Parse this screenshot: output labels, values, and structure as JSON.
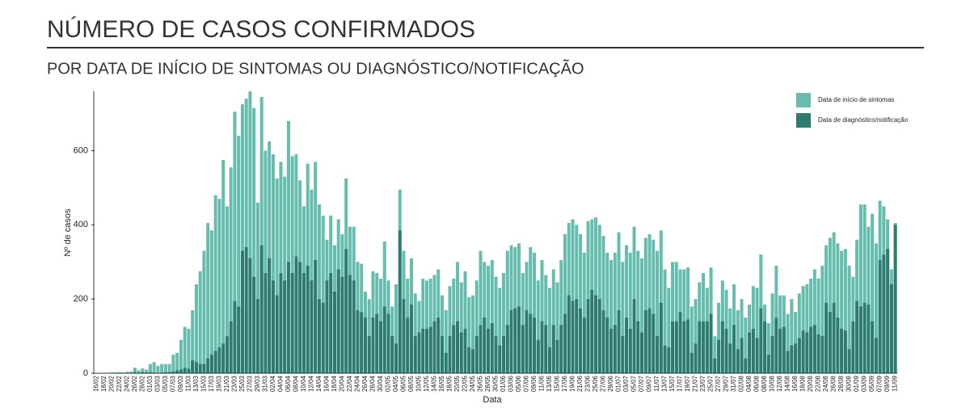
{
  "chart_data": {
    "type": "bar",
    "title": "NÚMERO DE CASOS CONFIRMADOS",
    "subtitle": "POR DATA DE INÍCIO DE SINTOMAS OU DIAGNÓSTICO/NOTIFICAÇÃO",
    "x_label": "Data",
    "y_label": "Nº de casos",
    "categories": [
      "16/02",
      null,
      "18/02",
      null,
      "20/02",
      null,
      "22/02",
      null,
      "24/02",
      null,
      "26/02",
      null,
      "28/02",
      null,
      "01/03",
      null,
      "03/03",
      null,
      "05/03",
      null,
      "07/03",
      null,
      "09/03",
      null,
      "11/03",
      null,
      "13/03",
      null,
      "15/03",
      null,
      "17/03",
      null,
      "19/03",
      null,
      "21/03",
      null,
      "23/03",
      null,
      "25/03",
      null,
      "27/03",
      null,
      "29/03",
      null,
      "31/03",
      null,
      "02/04",
      null,
      "04/04",
      null,
      "06/04",
      null,
      "08/04",
      null,
      "10/04",
      null,
      "12/04",
      null,
      "14/04",
      null,
      "16/04",
      null,
      "18/04",
      null,
      "20/04",
      null,
      "22/04",
      null,
      "24/04",
      null,
      "26/04",
      null,
      "28/04",
      null,
      "30/04",
      null,
      "02/05",
      null,
      "04/05",
      null,
      "06/05",
      null,
      "08/05",
      null,
      "10/05",
      null,
      "12/05",
      null,
      "14/05",
      null,
      "16/05",
      null,
      "18/05",
      null,
      "20/05",
      null,
      "22/05",
      null,
      "24/05",
      null,
      "26/05",
      null,
      "28/05",
      null,
      "30/05",
      null,
      "01/06",
      null,
      "03/06",
      null,
      "05/06",
      null,
      "07/06",
      null,
      "09/06",
      null,
      "11/06",
      null,
      "13/06",
      null,
      "15/06",
      null,
      "17/06",
      null,
      "19/06",
      null,
      "21/06",
      null,
      "23/06",
      null,
      "25/06",
      null,
      "27/06",
      null,
      "29/06",
      null,
      "01/07",
      null,
      "03/07",
      null,
      "05/07",
      null,
      "07/07",
      null,
      "09/07",
      null,
      "11/07",
      null,
      "13/07",
      null,
      "15/07",
      null,
      "17/07",
      null,
      "19/07",
      null,
      "21/07",
      null,
      "23/07",
      null,
      "25/07",
      null,
      "27/07",
      null,
      "29/07",
      null,
      "31/07",
      null,
      "02/08",
      null,
      "04/08",
      null,
      "06/08",
      null,
      "08/08",
      null,
      "10/08",
      null,
      "12/08",
      null,
      "14/08",
      null,
      "16/08",
      null,
      "18/08",
      null,
      "20/08",
      null,
      "22/08",
      null,
      "24/08",
      null,
      "26/08",
      null,
      "28/08",
      null,
      "30/08",
      null,
      "01/09",
      null,
      "03/09",
      null,
      "05/09",
      null,
      "07/09",
      null,
      "09/09",
      null,
      "11/09"
    ],
    "series": [
      {
        "name": "Data de início de sintomas",
        "color": "#66bdae",
        "values": [
          1,
          0,
          1,
          1,
          2,
          2,
          3,
          2,
          4,
          5,
          15,
          8,
          13,
          10,
          25,
          30,
          20,
          25,
          25,
          25,
          50,
          55,
          90,
          125,
          120,
          170,
          240,
          275,
          330,
          405,
          385,
          480,
          470,
          575,
          450,
          555,
          705,
          640,
          725,
          740,
          760,
          715,
          460,
          745,
          600,
          625,
          590,
          525,
          570,
          530,
          680,
          585,
          590,
          520,
          450,
          565,
          495,
          570,
          455,
          425,
          360,
          425,
          345,
          415,
          375,
          525,
          395,
          395,
          300,
          295,
          220,
          200,
          275,
          270,
          255,
          355,
          250,
          180,
          240,
          495,
          330,
          255,
          310,
          215,
          195,
          255,
          250,
          255,
          265,
          280,
          210,
          170,
          235,
          255,
          300,
          245,
          275,
          205,
          210,
          250,
          330,
          300,
          290,
          305,
          260,
          230,
          270,
          330,
          345,
          340,
          350,
          270,
          300,
          340,
          325,
          250,
          305,
          265,
          230,
          280,
          245,
          305,
          375,
          405,
          415,
          400,
          375,
          325,
          410,
          415,
          420,
          400,
          370,
          325,
          305,
          325,
          380,
          300,
          345,
          325,
          395,
          330,
          310,
          365,
          375,
          360,
          330,
          385,
          280,
          230,
          300,
          300,
          280,
          280,
          285,
          180,
          200,
          245,
          270,
          230,
          285,
          100,
          190,
          250,
          225,
          175,
          240,
          170,
          200,
          150,
          185,
          235,
          230,
          320,
          185,
          135,
          215,
          290,
          210,
          210,
          160,
          200,
          165,
          215,
          235,
          240,
          255,
          280,
          255,
          290,
          345,
          365,
          380,
          350,
          330,
          335,
          290,
          260,
          360,
          455,
          455,
          395,
          430,
          350,
          465,
          450,
          415,
          280,
          405
        ]
      },
      {
        "name": "Data de diagnóstico/notificação",
        "color": "#2e7b72",
        "values": [
          0,
          0,
          0,
          0,
          1,
          0,
          1,
          0,
          1,
          1,
          3,
          2,
          3,
          2,
          3,
          2,
          1,
          2,
          3,
          3,
          5,
          8,
          10,
          15,
          12,
          35,
          30,
          25,
          25,
          40,
          50,
          60,
          70,
          80,
          100,
          140,
          195,
          180,
          330,
          340,
          310,
          260,
          200,
          345,
          270,
          310,
          250,
          210,
          270,
          250,
          300,
          270,
          315,
          300,
          270,
          290,
          250,
          305,
          200,
          190,
          250,
          270,
          220,
          280,
          260,
          335,
          265,
          250,
          170,
          165,
          150,
          100,
          150,
          160,
          140,
          180,
          160,
          100,
          80,
          385,
          200,
          150,
          185,
          100,
          110,
          120,
          120,
          125,
          140,
          150,
          100,
          55,
          100,
          130,
          140,
          110,
          120,
          70,
          65,
          100,
          130,
          150,
          120,
          135,
          100,
          75,
          100,
          130,
          170,
          175,
          180,
          130,
          170,
          160,
          150,
          90,
          140,
          130,
          70,
          130,
          90,
          130,
          160,
          210,
          195,
          200,
          175,
          150,
          200,
          225,
          210,
          200,
          170,
          150,
          120,
          130,
          170,
          100,
          150,
          120,
          200,
          140,
          110,
          170,
          175,
          160,
          100,
          190,
          75,
          70,
          140,
          140,
          165,
          140,
          145,
          55,
          80,
          140,
          140,
          140,
          160,
          40,
          90,
          140,
          120,
          80,
          130,
          65,
          95,
          40,
          110,
          120,
          95,
          175,
          140,
          50,
          100,
          150,
          120,
          125,
          60,
          75,
          80,
          95,
          115,
          110,
          125,
          130,
          105,
          100,
          190,
          165,
          190,
          150,
          120,
          115,
          65,
          140,
          195,
          180,
          190,
          185,
          140,
          95,
          305,
          320,
          335,
          240,
          400
        ]
      }
    ],
    "ylim": [
      0,
      760
    ],
    "yticks": [
      0,
      200,
      400,
      600
    ]
  }
}
